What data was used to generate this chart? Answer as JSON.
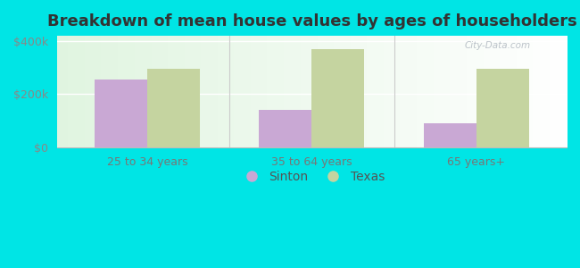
{
  "title": "Breakdown of mean house values by ages of householders",
  "categories": [
    "25 to 34 years",
    "35 to 64 years",
    "65 years+"
  ],
  "sinton_values": [
    255000,
    140000,
    90000
  ],
  "texas_values": [
    295000,
    370000,
    295000
  ],
  "sinton_color": "#c9a8d4",
  "texas_color": "#c5d4a0",
  "background_color": "#00e5e5",
  "yticks": [
    0,
    200000,
    400000
  ],
  "ytick_labels": [
    "$0",
    "$200k",
    "$400k"
  ],
  "ylim": [
    0,
    420000
  ],
  "bar_width": 0.32,
  "title_fontsize": 13,
  "legend_labels": [
    "Sinton",
    "Texas"
  ],
  "watermark": "City-Data.com"
}
